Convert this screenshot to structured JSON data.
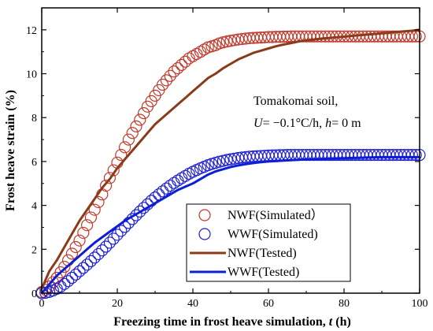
{
  "chart_data": {
    "type": "line",
    "xlabel": "Freezing time in frost heave simulation, ",
    "xlabel_var": "t",
    "xlabel_unit": " (h)",
    "ylabel": "Frost heave strain (%)",
    "xlim": [
      0,
      100
    ],
    "ylim": [
      0,
      13
    ],
    "x_ticks": [
      0,
      20,
      40,
      60,
      80,
      100
    ],
    "y_ticks": [
      0,
      2,
      4,
      6,
      8,
      10,
      12
    ],
    "grid": false,
    "legend_placement": "bottom-center",
    "annotation": {
      "line1": "Tomakomai soil,",
      "line2_var1": "U",
      "line2_mid": "= −0.1°C/h, ",
      "line2_var2": "h",
      "line2_end": "= 0 m"
    },
    "series": [
      {
        "name": "NWF(Simulated）",
        "style": "circles",
        "color": "#c0392b",
        "x": [
          0,
          1,
          2,
          3,
          4,
          5,
          6,
          7,
          8,
          9,
          10,
          11,
          12,
          13,
          14,
          15,
          16,
          17,
          18,
          19,
          20,
          21,
          22,
          23,
          24,
          25,
          26,
          27,
          28,
          29,
          30,
          31,
          32,
          33,
          34,
          35,
          36,
          37,
          38,
          39,
          40,
          41,
          42,
          43,
          44,
          45,
          46,
          47,
          48,
          49,
          50,
          51,
          52,
          53,
          54,
          55,
          56,
          57,
          58,
          59,
          60,
          61,
          62,
          63,
          64,
          65,
          66,
          67,
          68,
          69,
          70,
          71,
          72,
          73,
          74,
          75,
          76,
          77,
          78,
          79,
          80,
          81,
          82,
          83,
          84,
          85,
          86,
          87,
          88,
          89,
          90,
          91,
          92,
          93,
          94,
          95,
          96,
          97,
          98,
          99,
          100
        ],
        "y": [
          0.05,
          0.15,
          0.3,
          0.5,
          0.7,
          0.95,
          1.2,
          1.5,
          1.8,
          2.1,
          2.4,
          2.75,
          3.1,
          3.45,
          3.8,
          4.15,
          4.5,
          4.9,
          5.25,
          5.6,
          5.95,
          6.3,
          6.65,
          7.0,
          7.3,
          7.6,
          7.9,
          8.2,
          8.5,
          8.75,
          9.0,
          9.25,
          9.5,
          9.7,
          9.9,
          10.1,
          10.25,
          10.4,
          10.55,
          10.7,
          10.8,
          10.9,
          11.0,
          11.1,
          11.2,
          11.25,
          11.3,
          11.38,
          11.43,
          11.47,
          11.5,
          11.53,
          11.56,
          11.58,
          11.6,
          11.62,
          11.63,
          11.64,
          11.65,
          11.66,
          11.67,
          11.67,
          11.68,
          11.68,
          11.69,
          11.69,
          11.7,
          11.7,
          11.7,
          11.7,
          11.7,
          11.7,
          11.7,
          11.7,
          11.7,
          11.7,
          11.7,
          11.7,
          11.7,
          11.7,
          11.7,
          11.7,
          11.7,
          11.7,
          11.7,
          11.7,
          11.7,
          11.7,
          11.7,
          11.7,
          11.7,
          11.7,
          11.7,
          11.7,
          11.7,
          11.7,
          11.7,
          11.7,
          11.7,
          11.7,
          11.7
        ]
      },
      {
        "name": "WWF(Simulated)",
        "style": "circles",
        "color": "#2020d0",
        "x": [
          0,
          1,
          2,
          3,
          4,
          5,
          6,
          7,
          8,
          9,
          10,
          11,
          12,
          13,
          14,
          15,
          16,
          17,
          18,
          19,
          20,
          21,
          22,
          23,
          24,
          25,
          26,
          27,
          28,
          29,
          30,
          31,
          32,
          33,
          34,
          35,
          36,
          37,
          38,
          39,
          40,
          41,
          42,
          43,
          44,
          45,
          46,
          47,
          48,
          49,
          50,
          51,
          52,
          53,
          54,
          55,
          56,
          57,
          58,
          59,
          60,
          61,
          62,
          63,
          64,
          65,
          66,
          67,
          68,
          69,
          70,
          71,
          72,
          73,
          74,
          75,
          76,
          77,
          78,
          79,
          80,
          81,
          82,
          83,
          84,
          85,
          86,
          87,
          88,
          89,
          90,
          91,
          92,
          93,
          94,
          95,
          96,
          97,
          98,
          99,
          100
        ],
        "y": [
          0.0,
          0.02,
          0.06,
          0.12,
          0.2,
          0.3,
          0.42,
          0.55,
          0.7,
          0.85,
          1.0,
          1.15,
          1.3,
          1.46,
          1.62,
          1.78,
          1.95,
          2.12,
          2.3,
          2.48,
          2.66,
          2.84,
          3.02,
          3.2,
          3.38,
          3.55,
          3.72,
          3.89,
          4.05,
          4.21,
          4.36,
          4.5,
          4.64,
          4.77,
          4.9,
          5.02,
          5.13,
          5.24,
          5.34,
          5.44,
          5.53,
          5.61,
          5.69,
          5.76,
          5.83,
          5.89,
          5.94,
          5.99,
          6.03,
          6.07,
          6.1,
          6.13,
          6.16,
          6.18,
          6.2,
          6.22,
          6.23,
          6.24,
          6.25,
          6.26,
          6.27,
          6.28,
          6.28,
          6.29,
          6.29,
          6.3,
          6.3,
          6.3,
          6.3,
          6.3,
          6.3,
          6.3,
          6.3,
          6.3,
          6.3,
          6.3,
          6.3,
          6.3,
          6.3,
          6.3,
          6.3,
          6.3,
          6.3,
          6.3,
          6.3,
          6.3,
          6.3,
          6.3,
          6.3,
          6.3,
          6.3,
          6.3,
          6.3,
          6.3,
          6.3,
          6.3,
          6.3,
          6.3,
          6.3,
          6.3,
          6.3
        ]
      },
      {
        "name": "NWF(Tested)",
        "style": "line",
        "color": "#8b3a1a",
        "x": [
          0,
          2,
          4,
          6,
          8,
          10,
          12,
          14,
          16,
          18,
          20,
          22,
          24,
          26,
          28,
          30,
          32,
          34,
          36,
          38,
          40,
          42,
          44,
          46,
          48,
          50,
          52,
          54,
          56,
          58,
          60,
          62,
          64,
          66,
          68,
          70,
          72,
          74,
          76,
          78,
          80,
          82,
          84,
          86,
          88,
          90,
          92,
          94,
          96,
          98,
          100
        ],
        "y": [
          0.2,
          1.0,
          1.5,
          2.1,
          2.7,
          3.3,
          3.8,
          4.3,
          4.8,
          5.2,
          5.7,
          6.1,
          6.5,
          6.9,
          7.3,
          7.7,
          8.0,
          8.3,
          8.6,
          8.9,
          9.2,
          9.5,
          9.8,
          10.0,
          10.25,
          10.45,
          10.65,
          10.8,
          10.95,
          11.05,
          11.15,
          11.25,
          11.33,
          11.4,
          11.47,
          11.52,
          11.56,
          11.6,
          11.63,
          11.66,
          11.69,
          11.72,
          11.75,
          11.78,
          11.81,
          11.84,
          11.87,
          11.9,
          11.93,
          11.96,
          12.0
        ]
      },
      {
        "name": "WWF(Tested)",
        "style": "line",
        "color": "#0a1fd6",
        "x": [
          0,
          2,
          4,
          6,
          8,
          10,
          12,
          14,
          16,
          18,
          20,
          22,
          24,
          26,
          28,
          30,
          32,
          34,
          36,
          38,
          40,
          42,
          44,
          46,
          48,
          50,
          52,
          54,
          56,
          58,
          60,
          62,
          64,
          66,
          68,
          70,
          72,
          74,
          76,
          78,
          80,
          82,
          84,
          86,
          88,
          90,
          92,
          94,
          96,
          98,
          100
        ],
        "y": [
          0.0,
          0.4,
          0.8,
          1.1,
          1.4,
          1.7,
          2.0,
          2.3,
          2.55,
          2.8,
          3.05,
          3.3,
          3.5,
          3.7,
          3.9,
          4.1,
          4.3,
          4.5,
          4.7,
          4.85,
          5.0,
          5.2,
          5.4,
          5.55,
          5.65,
          5.75,
          5.82,
          5.88,
          5.93,
          5.97,
          6.0,
          6.02,
          6.04,
          6.06,
          6.08,
          6.1,
          6.11,
          6.12,
          6.13,
          6.14,
          6.15,
          6.16,
          6.17,
          6.18,
          6.19,
          6.2,
          6.2,
          6.2,
          6.2,
          6.2,
          6.2
        ]
      }
    ]
  }
}
